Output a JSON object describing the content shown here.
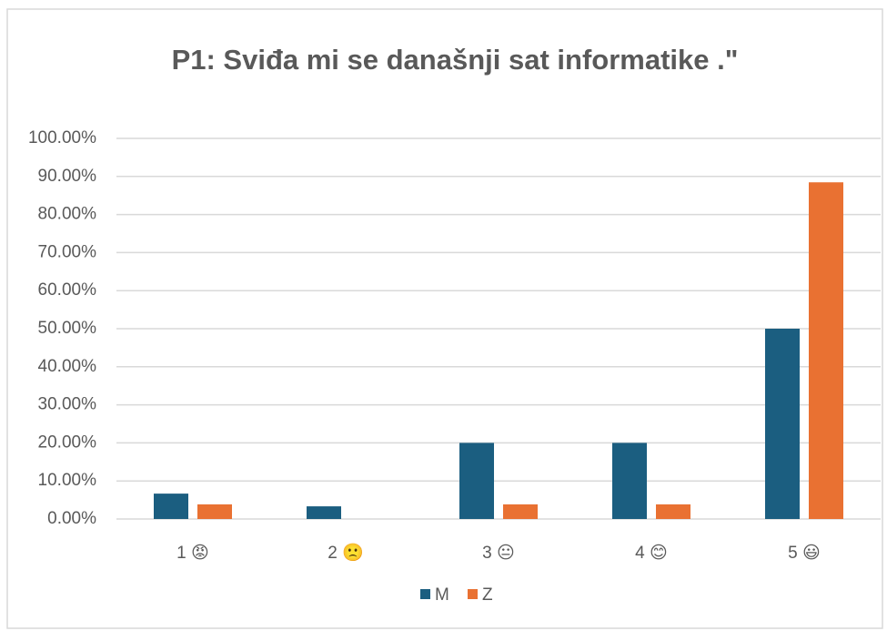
{
  "chart_data": {
    "type": "bar",
    "title": "P1: Sviđa mi se današnji sat informatike .\"",
    "categories": [
      "1 😡",
      "2 🙁",
      "3 😐",
      "4 😊",
      "5 😃"
    ],
    "series": [
      {
        "name": "M",
        "color": "#1b5e80",
        "values": [
          6.67,
          3.33,
          20,
          20,
          50
        ]
      },
      {
        "name": "Z",
        "color": "#e97132",
        "values": [
          3.85,
          0,
          3.85,
          3.85,
          88.46
        ]
      }
    ],
    "ylim": [
      0,
      100
    ],
    "yticks": [
      {
        "value": 0,
        "label": "0.00%"
      },
      {
        "value": 10,
        "label": "10.00%"
      },
      {
        "value": 20,
        "label": "20.00%"
      },
      {
        "value": 30,
        "label": "30.00%"
      },
      {
        "value": 40,
        "label": "40.00%"
      },
      {
        "value": 50,
        "label": "50.00%"
      },
      {
        "value": 60,
        "label": "60.00%"
      },
      {
        "value": 70,
        "label": "70.00%"
      },
      {
        "value": 80,
        "label": "80.00%"
      },
      {
        "value": 90,
        "label": "90.00%"
      },
      {
        "value": 100,
        "label": "100.00%"
      }
    ],
    "grid": true,
    "legend": "bottom"
  }
}
